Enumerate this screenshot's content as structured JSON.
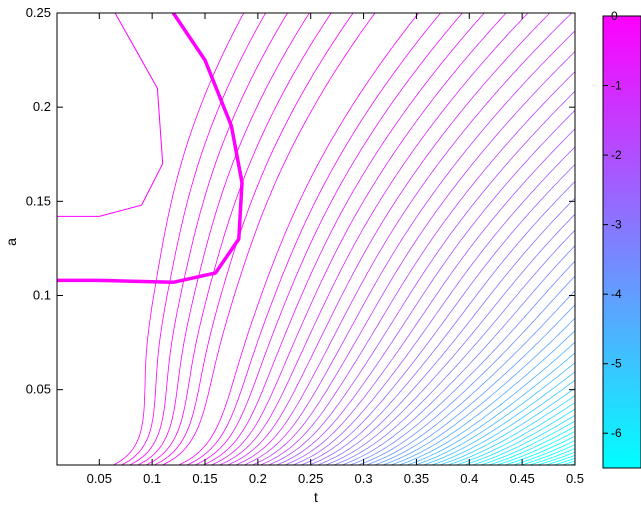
{
  "chart_data": {
    "type": "contour",
    "title": "",
    "xlabel": "t",
    "ylabel": "a",
    "xlim": [
      0.01,
      0.5
    ],
    "ylim": [
      0.01,
      0.25
    ],
    "x_ticks": [
      "0.05",
      "0.1",
      "0.15",
      "0.2",
      "0.25",
      "0.3",
      "0.35",
      "0.4",
      "0.45",
      "0.5"
    ],
    "y_ticks": [
      "0.05",
      "0.1",
      "0.15",
      "0.2",
      "0.25"
    ],
    "colorbar": {
      "range": [
        -6.5,
        0
      ],
      "tick_labels": [
        "0",
        "-1",
        "-2",
        "-3",
        "-4",
        "-5",
        "-6"
      ],
      "color_top": "#ff00ff",
      "color_bottom": "#00ffff"
    },
    "highlighted_level": 0,
    "series": [
      {
        "values": [
          [
            0.12,
            0.25
          ],
          [
            0.15,
            0.225
          ],
          [
            0.175,
            0.19
          ],
          [
            0.185,
            0.16
          ],
          [
            0.182,
            0.13
          ],
          [
            0.16,
            0.112
          ],
          [
            0.12,
            0.107
          ],
          [
            0.05,
            0.108
          ],
          [
            0.01,
            0.108
          ]
        ]
      },
      {
        "values": [
          [
            0.065,
            0.25
          ],
          [
            0.105,
            0.21
          ],
          [
            0.11,
            0.17
          ],
          [
            0.09,
            0.148
          ],
          [
            0.05,
            0.142
          ],
          [
            0.01,
            0.142
          ]
        ]
      }
    ],
    "grid": false,
    "legend": "colorbar-right"
  }
}
